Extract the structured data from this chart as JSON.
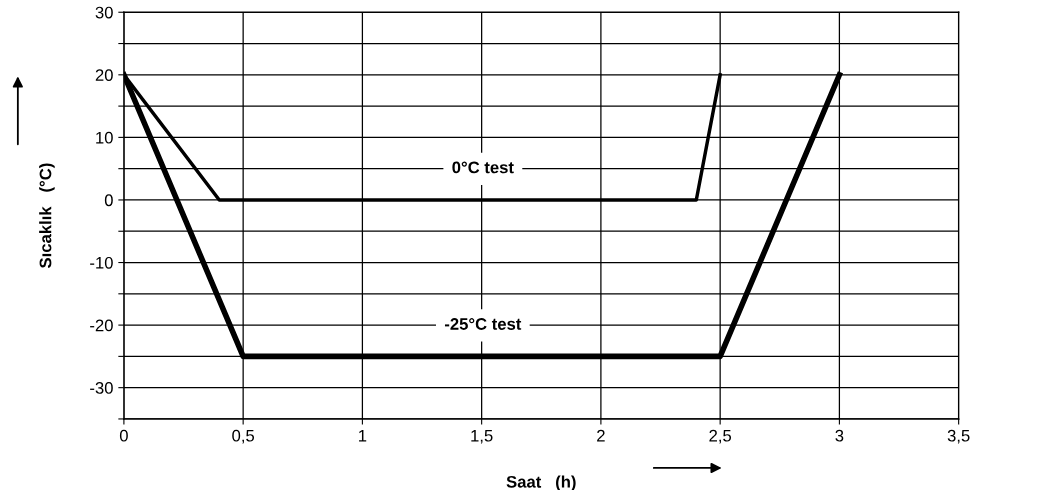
{
  "chart_data": {
    "type": "line",
    "xlabel": "Saat   (h)",
    "ylabel": "Sıcaklık   (°C)",
    "series": [
      {
        "color": "#000000",
        "x": [
          0,
          0.4,
          2.4,
          2.5
        ],
        "values": [
          20,
          0,
          0,
          20
        ]
      },
      {
        "color": "#000000",
        "x": [
          0,
          0.5,
          2.5,
          3
        ],
        "values": [
          20,
          -25,
          -25,
          20
        ]
      }
    ],
    "xlim": [
      0,
      3.5
    ],
    "ylim": [
      -35,
      30
    ],
    "xticks": [
      0,
      {
        "value": 0.5,
        "label": "0,5"
      },
      1,
      {
        "value": 1.5,
        "label": "1,5"
      },
      2,
      {
        "value": 2.5,
        "label": "2,5"
      },
      3,
      {
        "value": 3.5,
        "label": "3,5"
      }
    ],
    "yticks": [
      {
        "value": -35,
        "label": null
      },
      -30,
      {
        "value": -25,
        "label": null
      },
      -20,
      {
        "value": -15,
        "label": null
      },
      -10,
      {
        "value": -5,
        "label": null
      },
      0,
      {
        "value": 5,
        "label": null
      },
      10,
      {
        "value": 15,
        "label": null
      },
      20,
      {
        "value": 25,
        "label": null
      },
      30
    ],
    "annotations": [
      "0°C test",
      "-25°C test"
    ],
    "grid": true,
    "marker": "none",
    "line_style": "solid"
  }
}
